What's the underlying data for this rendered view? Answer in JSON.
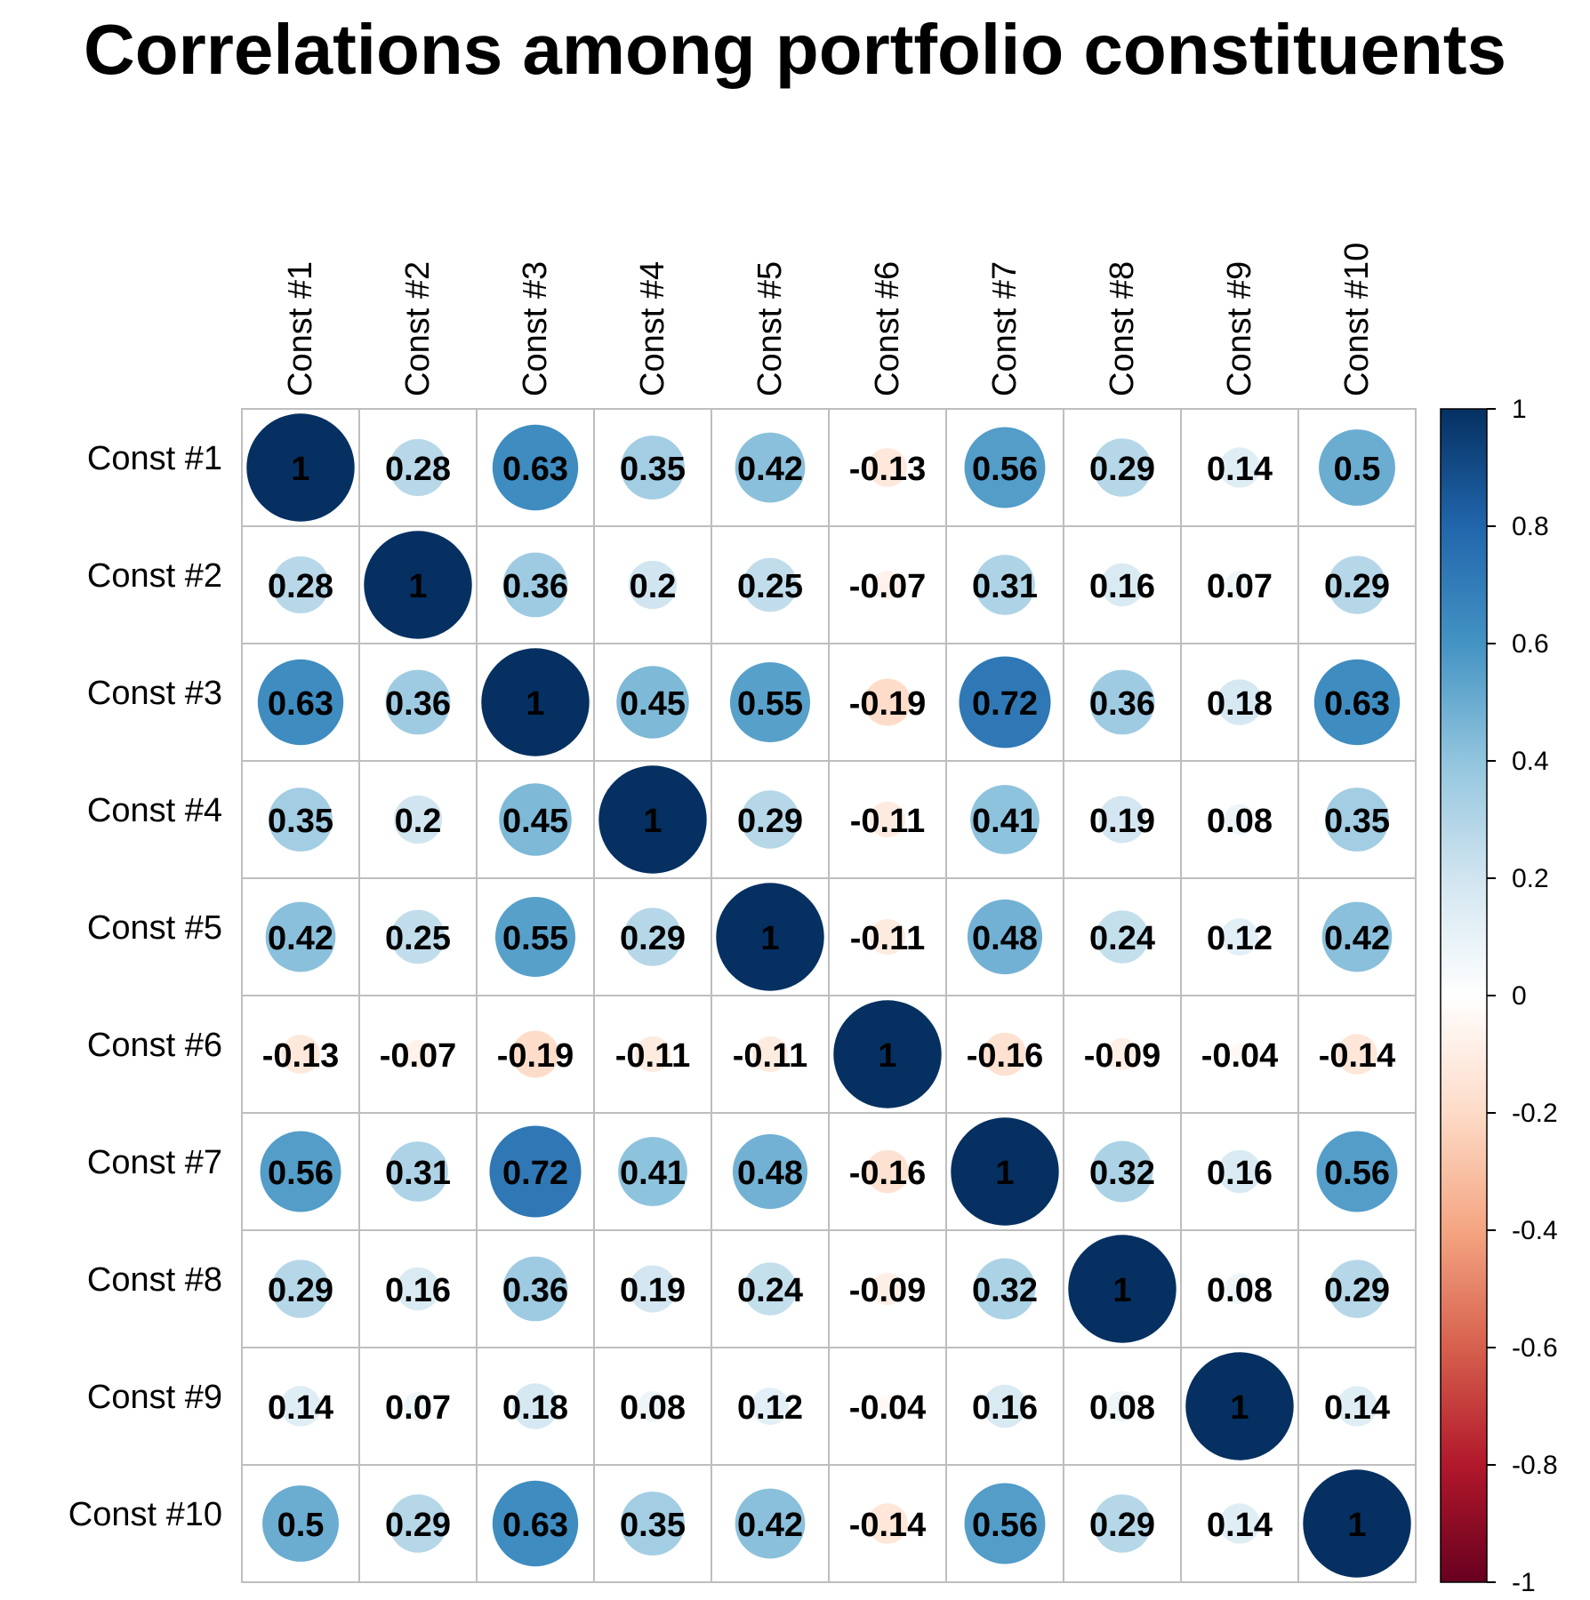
{
  "chart_data": {
    "type": "heatmap",
    "subtype": "correlation-circle-matrix",
    "title": "Correlations among portfolio constituents",
    "labels": [
      "Const #1",
      "Const #2",
      "Const #3",
      "Const #4",
      "Const #5",
      "Const #6",
      "Const #7",
      "Const #8",
      "Const #9",
      "Const #10"
    ],
    "matrix": [
      [
        1,
        0.28,
        0.63,
        0.35,
        0.42,
        -0.13,
        0.56,
        0.29,
        0.14,
        0.5
      ],
      [
        0.28,
        1,
        0.36,
        0.2,
        0.25,
        -0.07,
        0.31,
        0.16,
        0.07,
        0.29
      ],
      [
        0.63,
        0.36,
        1,
        0.45,
        0.55,
        -0.19,
        0.72,
        0.36,
        0.18,
        0.63
      ],
      [
        0.35,
        0.2,
        0.45,
        1,
        0.29,
        -0.11,
        0.41,
        0.19,
        0.08,
        0.35
      ],
      [
        0.42,
        0.25,
        0.55,
        0.29,
        1,
        -0.11,
        0.48,
        0.24,
        0.12,
        0.42
      ],
      [
        -0.13,
        -0.07,
        -0.19,
        -0.11,
        -0.11,
        1,
        -0.16,
        -0.09,
        -0.04,
        -0.14
      ],
      [
        0.56,
        0.31,
        0.72,
        0.41,
        0.48,
        -0.16,
        1,
        0.32,
        0.16,
        0.56
      ],
      [
        0.29,
        0.16,
        0.36,
        0.19,
        0.24,
        -0.09,
        0.32,
        1,
        0.08,
        0.29
      ],
      [
        0.14,
        0.07,
        0.18,
        0.08,
        0.12,
        -0.04,
        0.16,
        0.08,
        1,
        0.14
      ],
      [
        0.5,
        0.29,
        0.63,
        0.35,
        0.42,
        -0.14,
        0.56,
        0.29,
        0.14,
        1
      ]
    ],
    "colorbar": {
      "range": [
        -1,
        1
      ],
      "ticks": [
        "1",
        "0.8",
        "0.6",
        "0.4",
        "0.2",
        "0",
        "-0.2",
        "-0.4",
        "-0.6",
        "-0.8",
        "-1"
      ],
      "tick_values": [
        1,
        0.8,
        0.6,
        0.4,
        0.2,
        0,
        -0.2,
        -0.4,
        -0.6,
        -0.8,
        -1
      ],
      "colors_high_to_low": [
        "#053061",
        "#2166AC",
        "#4393C3",
        "#92C5DE",
        "#D1E5F0",
        "#FFFFFF",
        "#FDDBC7",
        "#F4A582",
        "#D6604D",
        "#B2182B",
        "#67001F"
      ],
      "placement": "right"
    },
    "grid": true,
    "label_color": "#000000",
    "value_label_color": "#000000",
    "grid_color": "#BEBEBE"
  }
}
